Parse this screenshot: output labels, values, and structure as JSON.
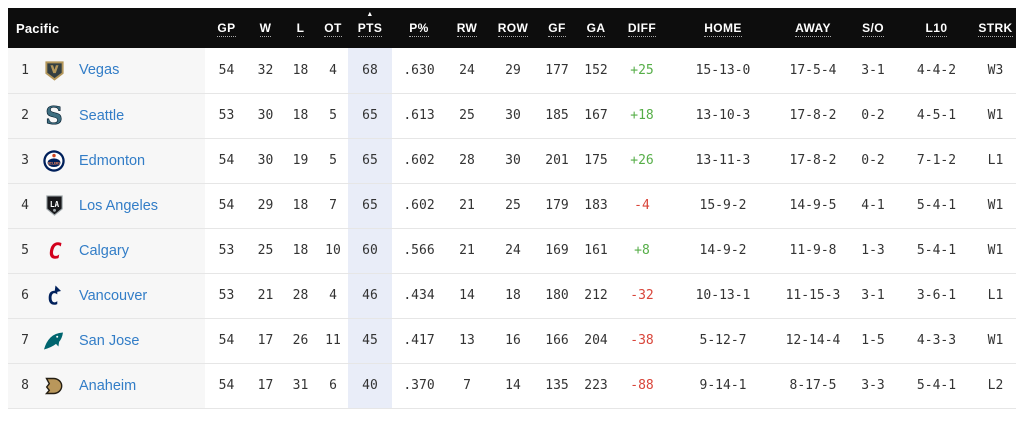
{
  "division": {
    "label": "Pacific"
  },
  "sort_indicator": "▲",
  "sorted_column": "pts",
  "colors": {
    "header_bg": "#0d0d0d",
    "header_text": "#ffffff",
    "team_column_bg": "#f7f7f7",
    "sorted_column_bg": "#e9edf8",
    "team_link": "#327dc7",
    "diff_positive": "#56ae48",
    "diff_negative": "#d9453a",
    "row_divider": "#e6e6e6",
    "stat_text": "#333333"
  },
  "columns": [
    {
      "key": "gp",
      "label": "GP"
    },
    {
      "key": "w",
      "label": "W"
    },
    {
      "key": "l",
      "label": "L"
    },
    {
      "key": "ot",
      "label": "OT"
    },
    {
      "key": "pts",
      "label": "PTS",
      "sorted": true
    },
    {
      "key": "ppct",
      "label": "P%"
    },
    {
      "key": "rw",
      "label": "RW"
    },
    {
      "key": "row",
      "label": "ROW"
    },
    {
      "key": "gf",
      "label": "GF"
    },
    {
      "key": "ga",
      "label": "GA"
    },
    {
      "key": "diff",
      "label": "DIFF"
    },
    {
      "key": "home",
      "label": "HOME"
    },
    {
      "key": "away",
      "label": "AWAY"
    },
    {
      "key": "so",
      "label": "S/O"
    },
    {
      "key": "l10",
      "label": "L10"
    },
    {
      "key": "strk",
      "label": "STRK"
    }
  ],
  "rows": [
    {
      "rank": "1",
      "team": "Vegas",
      "logo": "vegas-golden-knights-logo",
      "gp": "54",
      "w": "32",
      "l": "18",
      "ot": "4",
      "pts": "68",
      "ppct": ".630",
      "rw": "24",
      "row": "29",
      "gf": "177",
      "ga": "152",
      "diff": "+25",
      "home": "15-13-0",
      "away": "17-5-4",
      "so": "3-1",
      "l10": "4-4-2",
      "strk": "W3"
    },
    {
      "rank": "2",
      "team": "Seattle",
      "logo": "seattle-kraken-logo",
      "gp": "53",
      "w": "30",
      "l": "18",
      "ot": "5",
      "pts": "65",
      "ppct": ".613",
      "rw": "25",
      "row": "30",
      "gf": "185",
      "ga": "167",
      "diff": "+18",
      "home": "13-10-3",
      "away": "17-8-2",
      "so": "0-2",
      "l10": "4-5-1",
      "strk": "W1"
    },
    {
      "rank": "3",
      "team": "Edmonton",
      "logo": "edmonton-oilers-logo",
      "gp": "54",
      "w": "30",
      "l": "19",
      "ot": "5",
      "pts": "65",
      "ppct": ".602",
      "rw": "28",
      "row": "30",
      "gf": "201",
      "ga": "175",
      "diff": "+26",
      "home": "13-11-3",
      "away": "17-8-2",
      "so": "0-2",
      "l10": "7-1-2",
      "strk": "L1"
    },
    {
      "rank": "4",
      "team": "Los Angeles",
      "logo": "los-angeles-kings-logo",
      "gp": "54",
      "w": "29",
      "l": "18",
      "ot": "7",
      "pts": "65",
      "ppct": ".602",
      "rw": "21",
      "row": "25",
      "gf": "179",
      "ga": "183",
      "diff": "-4",
      "home": "15-9-2",
      "away": "14-9-5",
      "so": "4-1",
      "l10": "5-4-1",
      "strk": "W1"
    },
    {
      "rank": "5",
      "team": "Calgary",
      "logo": "calgary-flames-logo",
      "gp": "53",
      "w": "25",
      "l": "18",
      "ot": "10",
      "pts": "60",
      "ppct": ".566",
      "rw": "21",
      "row": "24",
      "gf": "169",
      "ga": "161",
      "diff": "+8",
      "home": "14-9-2",
      "away": "11-9-8",
      "so": "1-3",
      "l10": "5-4-1",
      "strk": "W1"
    },
    {
      "rank": "6",
      "team": "Vancouver",
      "logo": "vancouver-canucks-logo",
      "gp": "53",
      "w": "21",
      "l": "28",
      "ot": "4",
      "pts": "46",
      "ppct": ".434",
      "rw": "14",
      "row": "18",
      "gf": "180",
      "ga": "212",
      "diff": "-32",
      "home": "10-13-1",
      "away": "11-15-3",
      "so": "3-1",
      "l10": "3-6-1",
      "strk": "L1"
    },
    {
      "rank": "7",
      "team": "San Jose",
      "logo": "san-jose-sharks-logo",
      "gp": "54",
      "w": "17",
      "l": "26",
      "ot": "11",
      "pts": "45",
      "ppct": ".417",
      "rw": "13",
      "row": "16",
      "gf": "166",
      "ga": "204",
      "diff": "-38",
      "home": "5-12-7",
      "away": "12-14-4",
      "so": "1-5",
      "l10": "4-3-3",
      "strk": "W1"
    },
    {
      "rank": "8",
      "team": "Anaheim",
      "logo": "anaheim-ducks-logo",
      "gp": "54",
      "w": "17",
      "l": "31",
      "ot": "6",
      "pts": "40",
      "ppct": ".370",
      "rw": "7",
      "row": "14",
      "gf": "135",
      "ga": "223",
      "diff": "-88",
      "home": "9-14-1",
      "away": "8-17-5",
      "so": "3-3",
      "l10": "5-4-1",
      "strk": "L2"
    }
  ]
}
